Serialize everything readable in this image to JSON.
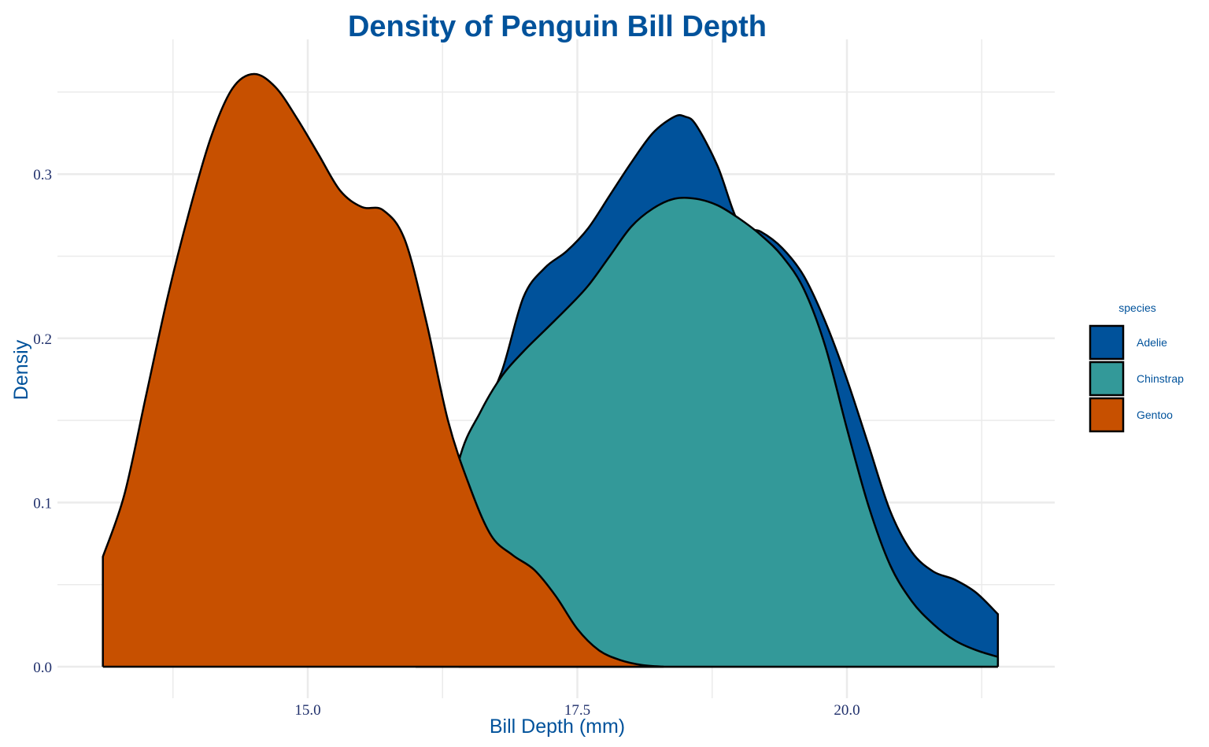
{
  "chart_data": {
    "type": "area",
    "subtype": "density",
    "title": "Density of Penguin Bill Depth",
    "xlabel": "Bill Depth (mm)",
    "ylabel": "Densiy",
    "xlim": [
      13.1,
      21.5
    ],
    "ylim": [
      0,
      0.36
    ],
    "x_ticks": [
      15.0,
      17.5,
      20.0
    ],
    "x_tick_labels": [
      "15.0",
      "17.5",
      "20.0"
    ],
    "y_ticks": [
      0.0,
      0.1,
      0.2,
      0.3
    ],
    "y_tick_labels": [
      "0.0",
      "0.1",
      "0.2",
      "0.3"
    ],
    "grid": true,
    "legend_title": "species",
    "legend_position": "right",
    "colors": {
      "title": "#00529B",
      "axis_title": "#00529B",
      "tick_label": "#1F2F6B",
      "legend_text": "#00529B",
      "grid": "#EBEBEB",
      "outline": "#000000"
    },
    "series": [
      {
        "name": "Adelie",
        "color": "#00529B",
        "points": [
          [
            16.4,
            0.127
          ],
          [
            16.6,
            0.152
          ],
          [
            16.8,
            0.18
          ],
          [
            17.0,
            0.225
          ],
          [
            17.2,
            0.243
          ],
          [
            17.4,
            0.253
          ],
          [
            17.6,
            0.267
          ],
          [
            17.8,
            0.287
          ],
          [
            18.0,
            0.307
          ],
          [
            18.2,
            0.325
          ],
          [
            18.4,
            0.335
          ],
          [
            18.5,
            0.335
          ],
          [
            18.6,
            0.33
          ],
          [
            18.8,
            0.305
          ],
          [
            19.0,
            0.27
          ],
          [
            19.2,
            0.265
          ],
          [
            19.4,
            0.255
          ],
          [
            19.6,
            0.238
          ],
          [
            19.8,
            0.21
          ],
          [
            20.0,
            0.175
          ],
          [
            20.2,
            0.135
          ],
          [
            20.4,
            0.095
          ],
          [
            20.6,
            0.07
          ],
          [
            20.8,
            0.058
          ],
          [
            21.0,
            0.053
          ],
          [
            21.2,
            0.045
          ],
          [
            21.4,
            0.032
          ]
        ]
      },
      {
        "name": "Chinstrap",
        "color": "#339999",
        "points": [
          [
            16.0,
            0.0
          ],
          [
            16.2,
            0.055
          ],
          [
            16.4,
            0.125
          ],
          [
            16.6,
            0.155
          ],
          [
            16.8,
            0.177
          ],
          [
            17.0,
            0.192
          ],
          [
            17.2,
            0.205
          ],
          [
            17.4,
            0.218
          ],
          [
            17.6,
            0.232
          ],
          [
            17.8,
            0.25
          ],
          [
            18.0,
            0.268
          ],
          [
            18.2,
            0.279
          ],
          [
            18.4,
            0.285
          ],
          [
            18.6,
            0.285
          ],
          [
            18.8,
            0.281
          ],
          [
            19.0,
            0.273
          ],
          [
            19.2,
            0.263
          ],
          [
            19.4,
            0.25
          ],
          [
            19.6,
            0.23
          ],
          [
            19.8,
            0.195
          ],
          [
            20.0,
            0.145
          ],
          [
            20.2,
            0.098
          ],
          [
            20.4,
            0.062
          ],
          [
            20.6,
            0.04
          ],
          [
            20.8,
            0.026
          ],
          [
            21.0,
            0.016
          ],
          [
            21.2,
            0.01
          ],
          [
            21.4,
            0.006
          ]
        ]
      },
      {
        "name": "Gentoo",
        "color": "#C75000",
        "points": [
          [
            13.1,
            0.067
          ],
          [
            13.3,
            0.105
          ],
          [
            13.5,
            0.165
          ],
          [
            13.7,
            0.225
          ],
          [
            13.9,
            0.277
          ],
          [
            14.1,
            0.322
          ],
          [
            14.3,
            0.352
          ],
          [
            14.5,
            0.361
          ],
          [
            14.7,
            0.353
          ],
          [
            14.9,
            0.334
          ],
          [
            15.1,
            0.312
          ],
          [
            15.3,
            0.29
          ],
          [
            15.5,
            0.28
          ],
          [
            15.7,
            0.278
          ],
          [
            15.9,
            0.26
          ],
          [
            16.1,
            0.21
          ],
          [
            16.3,
            0.15
          ],
          [
            16.5,
            0.11
          ],
          [
            16.7,
            0.08
          ],
          [
            16.9,
            0.068
          ],
          [
            17.1,
            0.059
          ],
          [
            17.3,
            0.043
          ],
          [
            17.5,
            0.023
          ],
          [
            17.7,
            0.01
          ],
          [
            17.9,
            0.004
          ],
          [
            18.1,
            0.001
          ],
          [
            18.3,
            0.0
          ]
        ]
      }
    ]
  }
}
